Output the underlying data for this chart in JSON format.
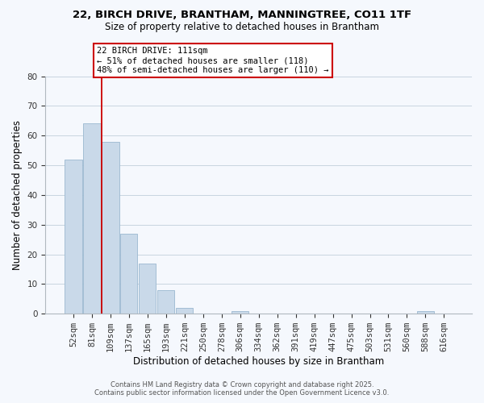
{
  "title_line1": "22, BIRCH DRIVE, BRANTHAM, MANNINGTREE, CO11 1TF",
  "title_line2": "Size of property relative to detached houses in Brantham",
  "xlabel": "Distribution of detached houses by size in Brantham",
  "ylabel": "Number of detached properties",
  "bar_labels": [
    "52sqm",
    "81sqm",
    "109sqm",
    "137sqm",
    "165sqm",
    "193sqm",
    "221sqm",
    "250sqm",
    "278sqm",
    "306sqm",
    "334sqm",
    "362sqm",
    "391sqm",
    "419sqm",
    "447sqm",
    "475sqm",
    "503sqm",
    "531sqm",
    "560sqm",
    "588sqm",
    "616sqm"
  ],
  "bar_values": [
    52,
    64,
    58,
    27,
    17,
    8,
    2,
    0,
    0,
    1,
    0,
    0,
    0,
    0,
    0,
    0,
    0,
    0,
    0,
    1,
    0
  ],
  "property_label": "22 BIRCH DRIVE: 111sqm",
  "annotation_line1": "← 51% of detached houses are smaller (118)",
  "annotation_line2": "48% of semi-detached houses are larger (110) →",
  "vline_x_index": 2,
  "bar_color": "#c9d9e9",
  "bar_edge_color": "#9ab8d0",
  "vline_color": "#cc0000",
  "box_edge_color": "#cc0000",
  "background_color": "#f5f8fd",
  "grid_color": "#c8d4e0",
  "ylim": [
    0,
    80
  ],
  "yticks": [
    0,
    10,
    20,
    30,
    40,
    50,
    60,
    70,
    80
  ],
  "footer_line1": "Contains HM Land Registry data © Crown copyright and database right 2025.",
  "footer_line2": "Contains public sector information licensed under the Open Government Licence v3.0."
}
